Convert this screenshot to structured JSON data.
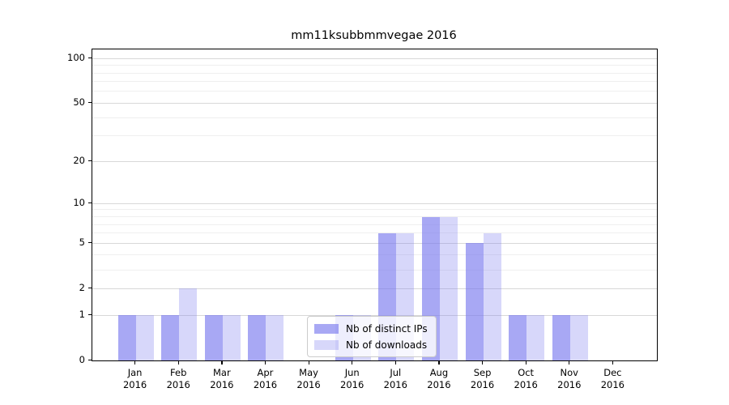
{
  "title": "mm11ksubbmmvegae 2016",
  "chart_data": {
    "type": "bar",
    "title": "mm11ksubbmmvegae 2016",
    "categories": [
      "Jan",
      "Feb",
      "Mar",
      "Apr",
      "May",
      "Jun",
      "Jul",
      "Aug",
      "Sep",
      "Oct",
      "Nov",
      "Dec"
    ],
    "tick_year": "2016",
    "series": [
      {
        "name": "Nb of distinct IPs",
        "color": "#7a7aee",
        "alpha": 0.65,
        "values": [
          1,
          1,
          1,
          1,
          0,
          1,
          6,
          8,
          5,
          1,
          1,
          0
        ]
      },
      {
        "name": "Nb of downloads",
        "color": "#7a7aee",
        "alpha": 0.3,
        "values": [
          1,
          2,
          1,
          1,
          0,
          1,
          6,
          8,
          6,
          1,
          1,
          0
        ]
      }
    ],
    "xlabel": "",
    "ylabel": "",
    "scale": "log1p",
    "ylim": [
      0,
      115
    ],
    "y_ticks": [
      0,
      1,
      2,
      5,
      10,
      20,
      50,
      100
    ],
    "y_minor_ticks": [
      3,
      4,
      6,
      7,
      8,
      9,
      30,
      40,
      60,
      70,
      80,
      90
    ],
    "grid": true,
    "legend_position": "lower-center"
  },
  "colors": {
    "grid_major": "#d8d8d8",
    "grid_minor": "#efefef",
    "axis": "#000000",
    "background": "#ffffff"
  }
}
